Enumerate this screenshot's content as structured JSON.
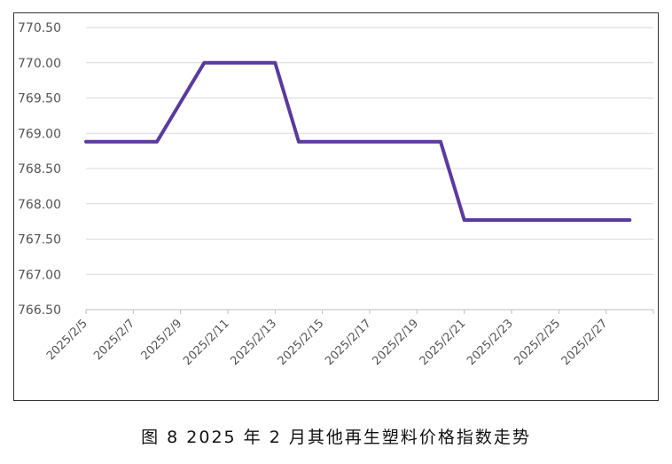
{
  "chart_data": {
    "type": "line",
    "title": "",
    "xlabel": "",
    "ylabel": "",
    "x_tick_labels": [
      "2025/2/5",
      "2025/2/7",
      "2025/2/9",
      "2025/2/11",
      "2025/2/13",
      "2025/2/15",
      "2025/2/17",
      "2025/2/19",
      "2025/2/21",
      "2025/2/23",
      "2025/2/25",
      "2025/2/27"
    ],
    "y_tick_labels": [
      "766.50",
      "767.00",
      "767.50",
      "768.00",
      "768.50",
      "769.00",
      "769.50",
      "770.00",
      "770.50"
    ],
    "ylim": [
      766.5,
      770.5
    ],
    "grid": "horizontal",
    "legend": "none",
    "series": [
      {
        "color": "#5b3a9e",
        "points": [
          {
            "x": "2025/2/5",
            "y": 768.88
          },
          {
            "x": "2025/2/6",
            "y": 768.88
          },
          {
            "x": "2025/2/7",
            "y": 768.88
          },
          {
            "x": "2025/2/8",
            "y": 768.88
          },
          {
            "x": "2025/2/10",
            "y": 770.0
          },
          {
            "x": "2025/2/11",
            "y": 770.0
          },
          {
            "x": "2025/2/12",
            "y": 770.0
          },
          {
            "x": "2025/2/13",
            "y": 770.0
          },
          {
            "x": "2025/2/14",
            "y": 768.88
          },
          {
            "x": "2025/2/15",
            "y": 768.88
          },
          {
            "x": "2025/2/16",
            "y": 768.88
          },
          {
            "x": "2025/2/17",
            "y": 768.88
          },
          {
            "x": "2025/2/18",
            "y": 768.88
          },
          {
            "x": "2025/2/19",
            "y": 768.88
          },
          {
            "x": "2025/2/20",
            "y": 768.88
          },
          {
            "x": "2025/2/21",
            "y": 767.77
          },
          {
            "x": "2025/2/22",
            "y": 767.77
          },
          {
            "x": "2025/2/23",
            "y": 767.77
          },
          {
            "x": "2025/2/24",
            "y": 767.77
          },
          {
            "x": "2025/2/25",
            "y": 767.77
          },
          {
            "x": "2025/2/26",
            "y": 767.77
          },
          {
            "x": "2025/2/27",
            "y": 767.77
          },
          {
            "x": "2025/2/28",
            "y": 767.77
          }
        ]
      }
    ]
  },
  "caption": "图 8  2025 年 2 月其他再生塑料价格指数走势",
  "colors": {
    "line": "#5b3a9e",
    "grid": "#d9d9d9",
    "axis": "#bfbfbf",
    "text": "#555555"
  }
}
